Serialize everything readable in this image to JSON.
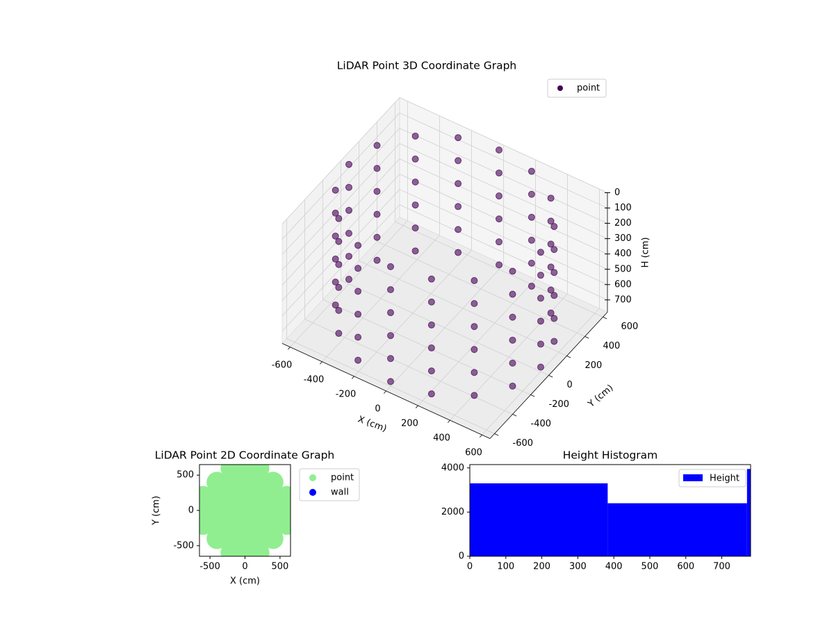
{
  "chart_data": [
    {
      "type": "scatter3d",
      "title": "LiDAR Point 3D Coordinate Graph",
      "xlabel": "X (cm)",
      "ylabel": "Y (cm)",
      "zlabel": "H (cm)",
      "series": [
        {
          "name": "point",
          "color": "#440154",
          "x": [
            600,
            554,
            424,
            230,
            0,
            -230,
            -424,
            -554,
            -600,
            -554,
            -424,
            -230,
            0,
            230,
            424,
            554,
            600,
            554,
            424,
            230,
            0,
            -230,
            -424,
            -554,
            -600,
            -554,
            -424,
            -230,
            0,
            230,
            424,
            554,
            600,
            554,
            424,
            230,
            0,
            -230,
            -424,
            -554,
            -600,
            -554,
            -424,
            -230,
            0,
            230,
            424,
            554,
            600,
            554,
            424,
            230,
            0,
            -230,
            -424,
            -554,
            -600,
            -554,
            -424,
            -230,
            0,
            230,
            424,
            554,
            600,
            554,
            424,
            230,
            0,
            -230,
            -424,
            -554,
            -600,
            -554,
            -424,
            -230,
            0,
            230,
            424,
            554,
            600,
            554,
            424,
            230,
            0,
            -230,
            -424,
            -554,
            -600,
            -554,
            -424,
            -230,
            0,
            230,
            424,
            554
          ],
          "y": [
            0,
            230,
            424,
            554,
            600,
            554,
            424,
            230,
            0,
            -230,
            -424,
            -554,
            -600,
            -554,
            -424,
            -230,
            0,
            230,
            424,
            554,
            600,
            554,
            424,
            230,
            0,
            -230,
            -424,
            -554,
            -600,
            -554,
            -424,
            -230,
            0,
            230,
            424,
            554,
            600,
            554,
            424,
            230,
            0,
            -230,
            -424,
            -554,
            -600,
            -554,
            -424,
            -230,
            0,
            230,
            424,
            554,
            600,
            554,
            424,
            230,
            0,
            -230,
            -424,
            -554,
            -600,
            -554,
            -424,
            -230,
            0,
            230,
            424,
            554,
            600,
            554,
            424,
            230,
            0,
            -230,
            -424,
            -554,
            -600,
            -554,
            -424,
            -230,
            0,
            230,
            424,
            554,
            600,
            554,
            424,
            230,
            0,
            -230,
            -424,
            -554,
            -600,
            -554,
            -424,
            -230
          ],
          "z": [
            0,
            0,
            0,
            0,
            0,
            0,
            0,
            0,
            0,
            0,
            0,
            0,
            0,
            0,
            0,
            0,
            150,
            150,
            150,
            150,
            150,
            150,
            150,
            150,
            150,
            150,
            150,
            150,
            150,
            150,
            150,
            150,
            300,
            300,
            300,
            300,
            300,
            300,
            300,
            300,
            300,
            300,
            300,
            300,
            300,
            300,
            300,
            300,
            450,
            450,
            450,
            450,
            450,
            450,
            450,
            450,
            450,
            450,
            450,
            450,
            450,
            450,
            450,
            450,
            600,
            600,
            600,
            600,
            600,
            600,
            600,
            600,
            600,
            600,
            600,
            600,
            600,
            600,
            600,
            600,
            750,
            750,
            750,
            750,
            750,
            750,
            750,
            750,
            750,
            750,
            750,
            750,
            750,
            750,
            750,
            750
          ]
        }
      ],
      "xlim": [
        -650,
        650
      ],
      "ylim": [
        -650,
        650
      ],
      "zlim": [
        780,
        0
      ],
      "xticks": [
        -600,
        -400,
        -200,
        0,
        200,
        400,
        600
      ],
      "yticks": [
        -600,
        -400,
        -200,
        0,
        200,
        400,
        600
      ],
      "zticks": [
        0,
        100,
        200,
        300,
        400,
        500,
        600,
        700
      ],
      "grid": true,
      "legend": "upper right"
    },
    {
      "type": "scatter",
      "title": "LiDAR Point 2D Coordinate Graph",
      "xlabel": "X (cm)",
      "ylabel": "Y (cm)",
      "series": [
        {
          "name": "point",
          "color": "#90ee90",
          "x": [
            -600,
            -600,
            -600,
            -400,
            -400,
            -400,
            -400,
            -400,
            -200,
            -200,
            -200,
            -200,
            -200,
            -200,
            -200,
            0,
            0,
            0,
            0,
            0,
            0,
            0,
            200,
            200,
            200,
            200,
            200,
            200,
            200,
            400,
            400,
            400,
            400,
            400,
            600,
            600,
            600
          ],
          "y": [
            -200,
            0,
            200,
            -400,
            -200,
            0,
            200,
            400,
            -600,
            -400,
            -200,
            0,
            200,
            400,
            600,
            -600,
            -400,
            -200,
            0,
            200,
            400,
            600,
            -600,
            -400,
            -200,
            0,
            200,
            400,
            600,
            -400,
            -200,
            0,
            200,
            400,
            -200,
            0,
            200
          ]
        },
        {
          "name": "wall",
          "color": "#0000ff",
          "x": [],
          "y": []
        }
      ],
      "xlim": [
        -650,
        650
      ],
      "ylim": [
        -650,
        650
      ],
      "xticks": [
        -500,
        0,
        500
      ],
      "yticks": [
        -500,
        0,
        500
      ],
      "legend": "outside right"
    },
    {
      "type": "histogram",
      "title": "Height Histogram",
      "name": "Height",
      "color": "#0000ff",
      "bins": [
        0,
        383,
        770,
        780
      ],
      "values": [
        3300,
        2400,
        3950
      ],
      "xlim": [
        0,
        780
      ],
      "ylim": [
        0,
        4150
      ],
      "xticks": [
        0,
        100,
        200,
        300,
        400,
        500,
        600,
        700
      ],
      "yticks": [
        0,
        2000,
        4000
      ],
      "legend": "upper right"
    }
  ]
}
